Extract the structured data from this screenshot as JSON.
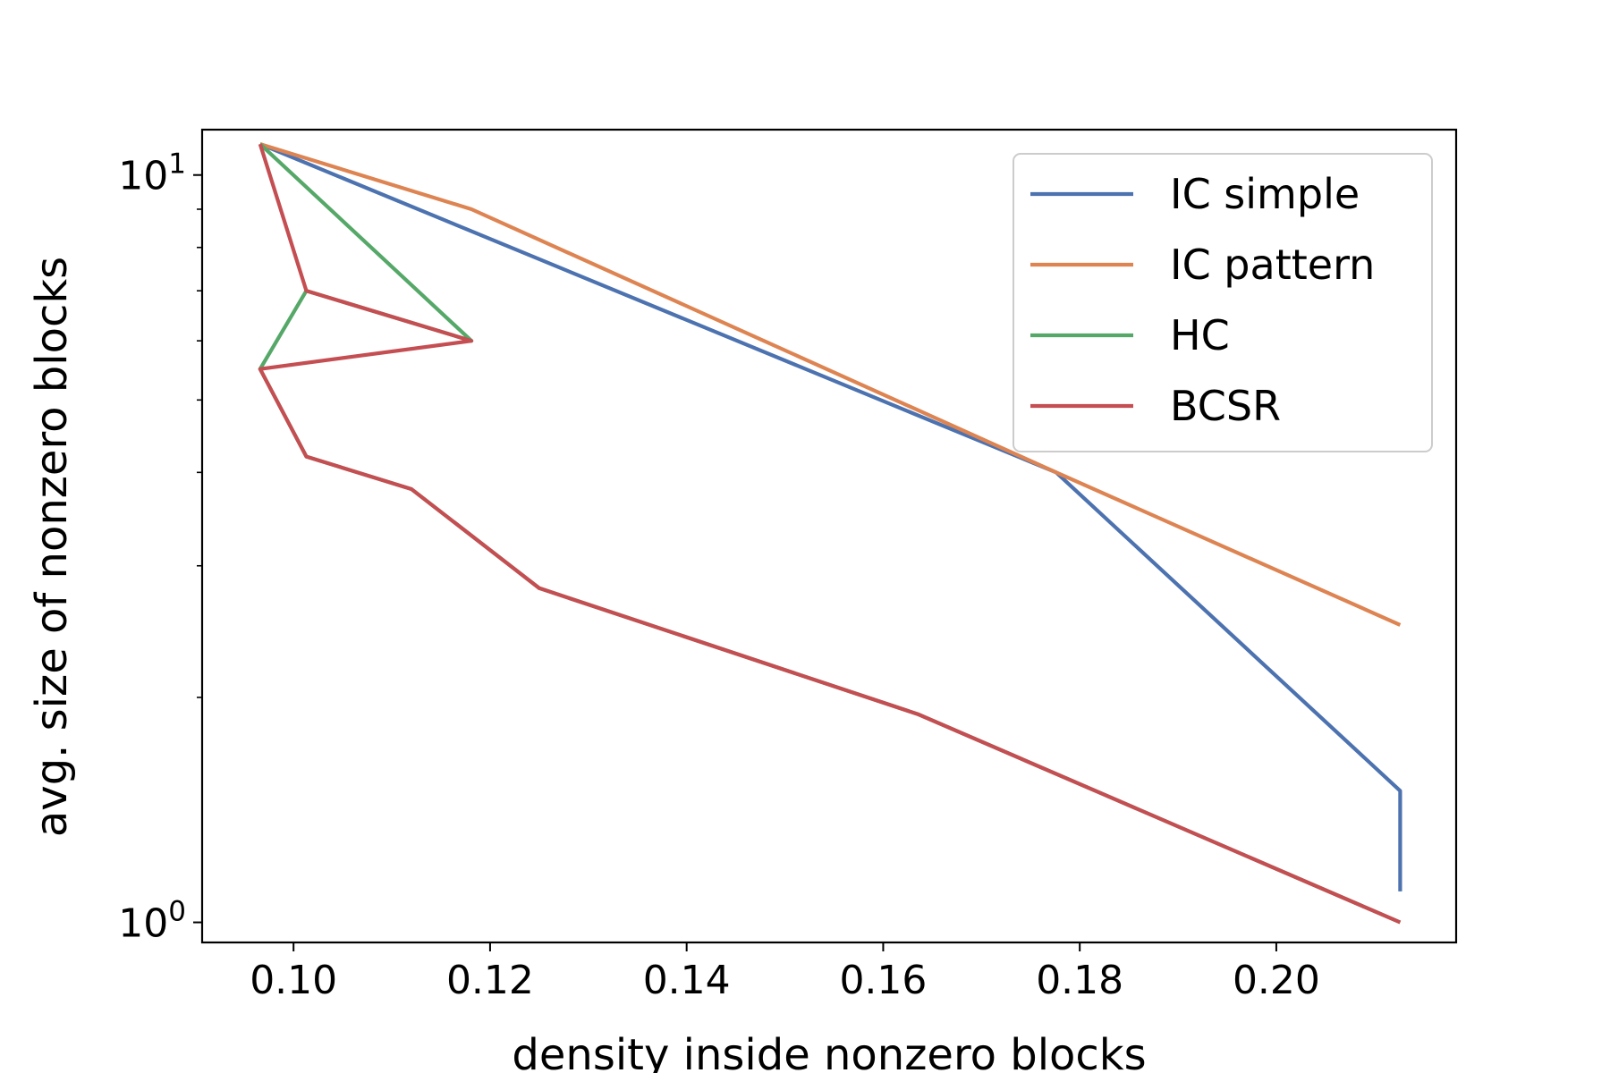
{
  "chart_data": {
    "type": "line",
    "xlabel": "density inside nonzero blocks",
    "ylabel": "avg. size of nonzero blocks",
    "xlim": [
      0.0907,
      0.2183
    ],
    "ylim": [
      0.94,
      11.5
    ],
    "yscale": "log",
    "grid": false,
    "legend_position": "top-right",
    "x_ticks": [
      {
        "value": 0.1,
        "label": "0.10"
      },
      {
        "value": 0.12,
        "label": "0.12"
      },
      {
        "value": 0.14,
        "label": "0.14"
      },
      {
        "value": 0.16,
        "label": "0.16"
      },
      {
        "value": 0.18,
        "label": "0.18"
      },
      {
        "value": 0.2,
        "label": "0.20"
      }
    ],
    "y_major_ticks": [
      {
        "value": 1,
        "base": "10",
        "exp": "0"
      },
      {
        "value": 10,
        "base": "10",
        "exp": "1"
      }
    ],
    "y_minor_ticks": [
      2,
      3,
      4,
      5,
      6,
      7,
      8,
      9
    ],
    "series": [
      {
        "name": "IC simple",
        "color": "#4c72b0",
        "x": [
          0.0966,
          0.1776,
          0.2126,
          0.2126
        ],
        "y": [
          11.0,
          4.0,
          1.5,
          1.1
        ]
      },
      {
        "name": "IC pattern",
        "color": "#dd8452",
        "x": [
          0.0966,
          0.1181,
          0.1776,
          0.2126
        ],
        "y": [
          11.0,
          9.0,
          4.0,
          2.5
        ]
      },
      {
        "name": "HC",
        "color": "#55a868",
        "x": [
          0.0966,
          0.1181,
          0.1013,
          0.0966,
          0.1013,
          0.112,
          0.125,
          0.1635,
          0.2126
        ],
        "y": [
          11.0,
          6.0,
          7.0,
          5.5,
          4.2,
          3.8,
          2.8,
          1.9,
          1.0
        ]
      },
      {
        "name": "BCSR",
        "color": "#c44e52",
        "x": [
          0.0966,
          0.1013,
          0.1181,
          0.0966,
          0.1013,
          0.112,
          0.125,
          0.1635,
          0.2126
        ],
        "y": [
          11.0,
          7.0,
          6.0,
          5.5,
          4.2,
          3.8,
          2.8,
          1.9,
          1.0
        ]
      }
    ]
  }
}
